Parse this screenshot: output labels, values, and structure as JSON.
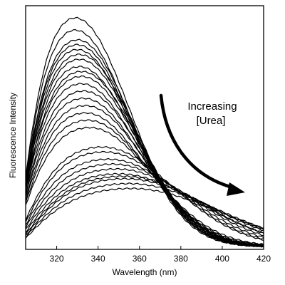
{
  "chart_data": {
    "type": "line",
    "title": "",
    "xlabel": "Wavelength (nm)",
    "ylabel": "Fluorescence Intensity",
    "xlim": [
      305,
      420
    ],
    "ylim": [
      0,
      1
    ],
    "xticks": [
      320,
      340,
      360,
      380,
      400,
      420
    ],
    "y_tick_labels_shown": false,
    "grid": false,
    "annotation": {
      "line1": "Increasing",
      "line2": "[Urea]",
      "arrow": "curved, pointing down-right"
    },
    "series_shape": {
      "x": [
        305,
        310,
        315,
        320,
        325,
        330,
        335,
        340,
        345,
        350,
        355,
        360,
        365,
        370,
        375,
        380,
        385,
        390,
        395,
        400,
        405,
        410,
        415,
        420
      ],
      "note_units": "intensity normalized to axis range"
    },
    "series": [
      {
        "peak_x": 329,
        "peak_y": 0.95,
        "start_y": 0.3
      },
      {
        "peak_x": 329,
        "peak_y": 0.9,
        "start_y": 0.29
      },
      {
        "peak_x": 330,
        "peak_y": 0.86,
        "start_y": 0.28
      },
      {
        "peak_x": 330,
        "peak_y": 0.84,
        "start_y": 0.28
      },
      {
        "peak_x": 330,
        "peak_y": 0.82,
        "start_y": 0.27
      },
      {
        "peak_x": 331,
        "peak_y": 0.8,
        "start_y": 0.27
      },
      {
        "peak_x": 331,
        "peak_y": 0.78,
        "start_y": 0.26
      },
      {
        "peak_x": 331,
        "peak_y": 0.75,
        "start_y": 0.26
      },
      {
        "peak_x": 332,
        "peak_y": 0.73,
        "start_y": 0.25
      },
      {
        "peak_x": 332,
        "peak_y": 0.71,
        "start_y": 0.25
      },
      {
        "peak_x": 332,
        "peak_y": 0.68,
        "start_y": 0.24
      },
      {
        "peak_x": 333,
        "peak_y": 0.65,
        "start_y": 0.23
      },
      {
        "peak_x": 333,
        "peak_y": 0.62,
        "start_y": 0.22
      },
      {
        "peak_x": 334,
        "peak_y": 0.59,
        "start_y": 0.21
      },
      {
        "peak_x": 334,
        "peak_y": 0.56,
        "start_y": 0.2
      },
      {
        "peak_x": 335,
        "peak_y": 0.53,
        "start_y": 0.19
      },
      {
        "peak_x": 336,
        "peak_y": 0.5,
        "start_y": 0.18
      },
      {
        "peak_x": 342,
        "peak_y": 0.42,
        "start_y": 0.12
      },
      {
        "peak_x": 343,
        "peak_y": 0.4,
        "start_y": 0.11
      },
      {
        "peak_x": 345,
        "peak_y": 0.37,
        "start_y": 0.1
      },
      {
        "peak_x": 347,
        "peak_y": 0.35,
        "start_y": 0.09
      },
      {
        "peak_x": 349,
        "peak_y": 0.33,
        "start_y": 0.08
      },
      {
        "peak_x": 350,
        "peak_y": 0.31,
        "start_y": 0.07
      },
      {
        "peak_x": 352,
        "peak_y": 0.3,
        "start_y": 0.06
      },
      {
        "peak_x": 353,
        "peak_y": 0.29,
        "start_y": 0.055
      },
      {
        "peak_x": 355,
        "peak_y": 0.27,
        "start_y": 0.05
      },
      {
        "peak_x": 356,
        "peak_y": 0.25,
        "start_y": 0.045
      }
    ]
  }
}
